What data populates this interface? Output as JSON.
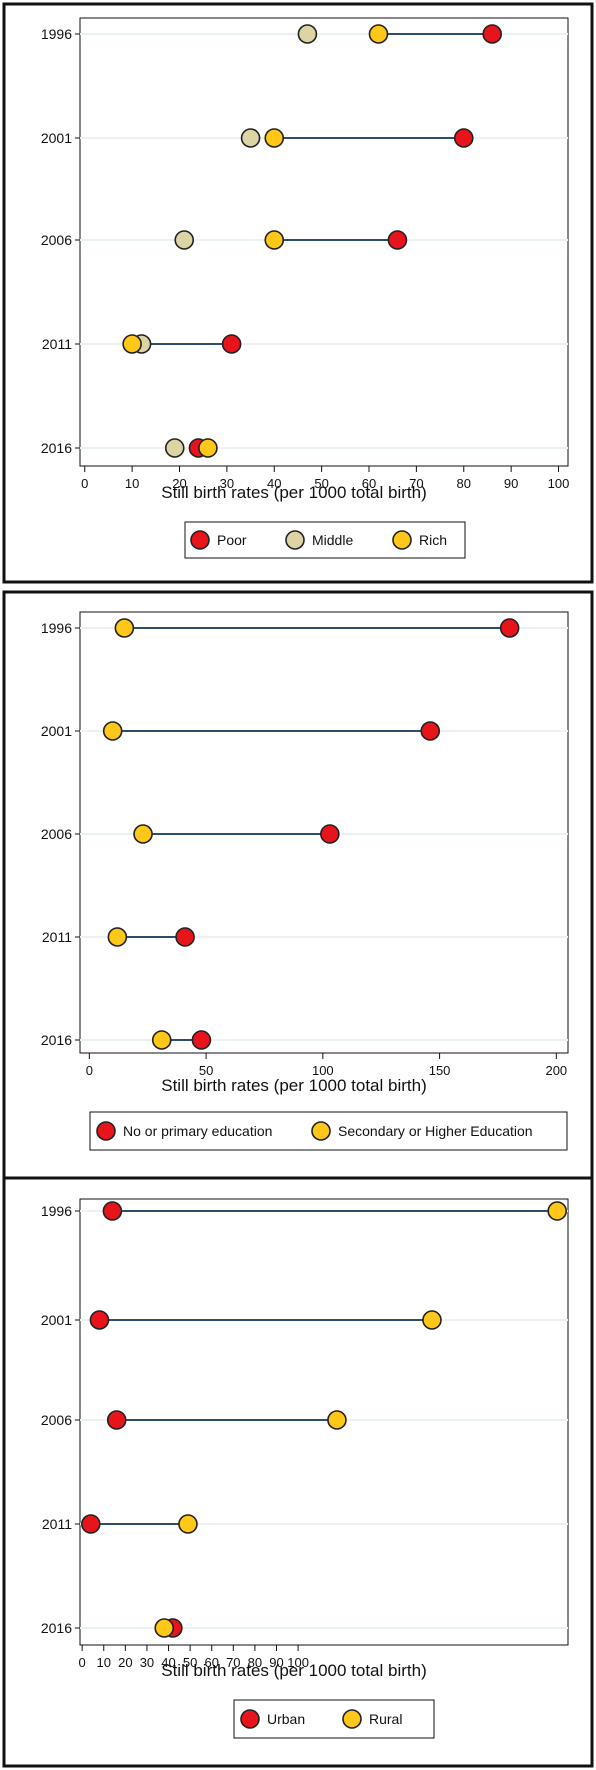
{
  "colors": {
    "poor": "#e8141b",
    "middle": "#ddd4a5",
    "rich": "#ffc718",
    "connector": "#2b4d6e",
    "grid": "#eaf2f3"
  },
  "chart_data": [
    {
      "type": "dot-range",
      "categories": [
        "1996",
        "2001",
        "2006",
        "2011",
        "2016"
      ],
      "xlabel": "Still birth rates (per 1000 total birth)",
      "xlim": [
        -1,
        102
      ],
      "xticks": [
        0,
        10,
        20,
        30,
        40,
        50,
        60,
        70,
        80,
        90,
        100
      ],
      "range_series": [
        "Poor",
        "Rich"
      ],
      "legend_position": "bottom",
      "series": [
        {
          "name": "Poor",
          "color": "#e8141b",
          "values": [
            86,
            80,
            66,
            31,
            24
          ]
        },
        {
          "name": "Middle",
          "color": "#ddd4a5",
          "values": [
            47,
            35,
            21,
            12,
            19
          ]
        },
        {
          "name": "Rich",
          "color": "#ffc718",
          "values": [
            62,
            40,
            40,
            10,
            26
          ]
        }
      ]
    },
    {
      "type": "dot-range",
      "categories": [
        "1996",
        "2001",
        "2006",
        "2011",
        "2016"
      ],
      "xlabel": "Still birth rates (per 1000 total birth)",
      "xlim": [
        -4,
        205
      ],
      "xticks": [
        0,
        50,
        100,
        150,
        200
      ],
      "range_series": [
        "No or primary education",
        "Secondary or Higher Education"
      ],
      "legend_position": "bottom",
      "series": [
        {
          "name": "No or primary education",
          "color": "#e8141b",
          "values": [
            180,
            146,
            103,
            41,
            48
          ]
        },
        {
          "name": "Secondary or Higher Education",
          "color": "#ffc718",
          "values": [
            15,
            10,
            23,
            12,
            31
          ]
        }
      ]
    },
    {
      "type": "dot-range",
      "categories": [
        "1996",
        "2001",
        "2006",
        "2011",
        "2016"
      ],
      "xlabel": "Still birth rates (per 1000 total birth)",
      "xlim": [
        -1,
        225
      ],
      "xticks": [
        0,
        10,
        20,
        30,
        40,
        50,
        60,
        70,
        80,
        90,
        100
      ],
      "range_series": [
        "Urban",
        "Rural"
      ],
      "legend_position": "bottom",
      "series": [
        {
          "name": "Urban",
          "color": "#e8141b",
          "values": [
            14,
            8,
            16,
            4,
            42
          ]
        },
        {
          "name": "Rural",
          "color": "#ffc718",
          "values": [
            220,
            162,
            118,
            49,
            38
          ]
        }
      ]
    }
  ]
}
